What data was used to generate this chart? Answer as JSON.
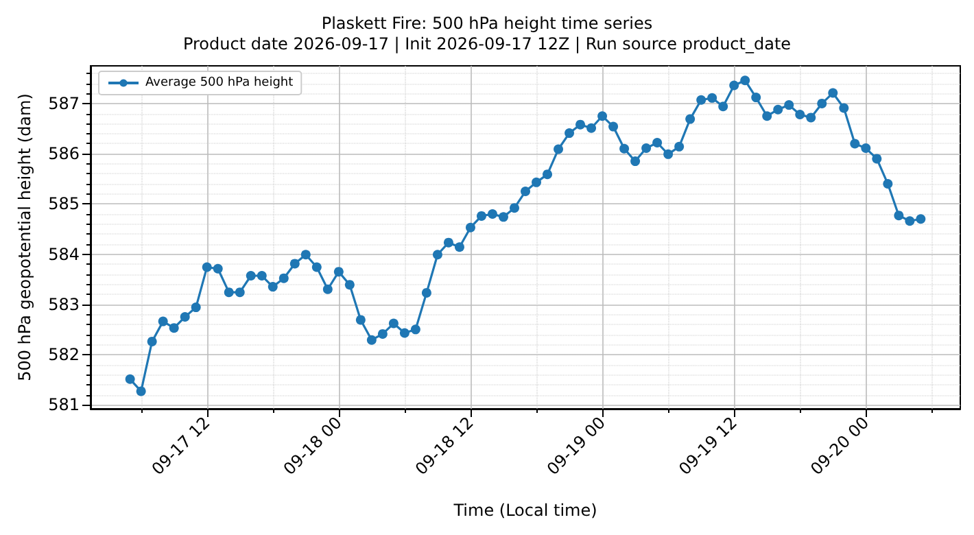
{
  "chart_data": {
    "type": "line",
    "title": "Plaskett Fire: 500 hPa height time series",
    "subtitle": "Product date 2026-09-17 | Init 2026-09-17 12Z | Run source product_date",
    "xlabel": "Time (Local time)",
    "ylabel": "500 hPa geopotential height (dam)",
    "x": [
      "2026-09-17T05:00",
      "2026-09-17T06:00",
      "2026-09-17T07:00",
      "2026-09-17T08:00",
      "2026-09-17T09:00",
      "2026-09-17T10:00",
      "2026-09-17T11:00",
      "2026-09-17T12:00",
      "2026-09-17T13:00",
      "2026-09-17T14:00",
      "2026-09-17T15:00",
      "2026-09-17T16:00",
      "2026-09-17T17:00",
      "2026-09-17T18:00",
      "2026-09-17T19:00",
      "2026-09-17T20:00",
      "2026-09-17T21:00",
      "2026-09-17T22:00",
      "2026-09-17T23:00",
      "2026-09-18T00:00",
      "2026-09-18T01:00",
      "2026-09-18T02:00",
      "2026-09-18T03:00",
      "2026-09-18T04:00",
      "2026-09-18T05:00",
      "2026-09-18T06:00",
      "2026-09-18T07:00",
      "2026-09-18T08:00",
      "2026-09-18T09:00",
      "2026-09-18T10:00",
      "2026-09-18T11:00",
      "2026-09-18T12:00",
      "2026-09-18T13:00",
      "2026-09-18T14:00",
      "2026-09-18T15:00",
      "2026-09-18T16:00",
      "2026-09-18T17:00",
      "2026-09-18T18:00",
      "2026-09-18T19:00",
      "2026-09-18T20:00",
      "2026-09-18T21:00",
      "2026-09-18T22:00",
      "2026-09-18T23:00",
      "2026-09-19T00:00",
      "2026-09-19T01:00",
      "2026-09-19T02:00",
      "2026-09-19T03:00",
      "2026-09-19T04:00",
      "2026-09-19T05:00",
      "2026-09-19T06:00",
      "2026-09-19T07:00",
      "2026-09-19T08:00",
      "2026-09-19T09:00",
      "2026-09-19T10:00",
      "2026-09-19T11:00",
      "2026-09-19T12:00",
      "2026-09-19T13:00",
      "2026-09-19T14:00",
      "2026-09-19T15:00",
      "2026-09-19T16:00",
      "2026-09-19T17:00",
      "2026-09-19T18:00",
      "2026-09-19T19:00",
      "2026-09-19T20:00",
      "2026-09-19T21:00",
      "2026-09-19T22:00",
      "2026-09-19T23:00",
      "2026-09-20T00:00",
      "2026-09-20T01:00",
      "2026-09-20T02:00",
      "2026-09-20T03:00",
      "2026-09-20T04:00",
      "2026-09-20T05:00"
    ],
    "series": [
      {
        "name": "Average 500 hPa height",
        "color": "#1f77b4",
        "values": [
          581.51,
          581.27,
          582.26,
          582.66,
          582.53,
          582.75,
          582.94,
          583.74,
          583.71,
          583.24,
          583.24,
          583.57,
          583.57,
          583.35,
          583.52,
          583.81,
          583.99,
          583.74,
          583.3,
          583.65,
          583.39,
          582.69,
          582.29,
          582.41,
          582.62,
          582.43,
          582.5,
          583.23,
          583.99,
          584.23,
          584.14,
          584.53,
          584.76,
          584.8,
          584.74,
          584.92,
          585.25,
          585.43,
          585.59,
          586.09,
          586.41,
          586.58,
          586.51,
          586.75,
          586.54,
          586.1,
          585.85,
          586.11,
          586.22,
          585.99,
          586.14,
          586.69,
          587.07,
          587.11,
          586.94,
          587.36,
          587.46,
          587.12,
          586.75,
          586.88,
          586.97,
          586.78,
          586.72,
          587.0,
          587.21,
          586.91,
          586.2,
          586.11,
          585.9,
          585.4,
          584.77,
          584.66,
          584.7
        ]
      }
    ],
    "xlim": [
      "2026-09-17T01:24",
      "2026-09-20T08:36"
    ],
    "xticks": [
      {
        "value": "2026-09-17T06:00",
        "label": null
      },
      {
        "value": "2026-09-17T12:00",
        "label": "09-17 12"
      },
      {
        "value": "2026-09-17T18:00",
        "label": null
      },
      {
        "value": "2026-09-18T00:00",
        "label": "09-18 00"
      },
      {
        "value": "2026-09-18T06:00",
        "label": null
      },
      {
        "value": "2026-09-18T12:00",
        "label": "09-18 12"
      },
      {
        "value": "2026-09-18T18:00",
        "label": null
      },
      {
        "value": "2026-09-19T00:00",
        "label": "09-19 00"
      },
      {
        "value": "2026-09-19T06:00",
        "label": null
      },
      {
        "value": "2026-09-19T12:00",
        "label": "09-19 12"
      },
      {
        "value": "2026-09-19T18:00",
        "label": null
      },
      {
        "value": "2026-09-20T00:00",
        "label": "09-20 00"
      },
      {
        "value": "2026-09-20T06:00",
        "label": null
      }
    ],
    "ylim": [
      580.92,
      587.75
    ],
    "yticks": [
      581,
      {
        "value": 581.2,
        "label": null
      },
      {
        "value": 581.4,
        "label": null
      },
      {
        "value": 581.6,
        "label": null
      },
      {
        "value": 581.8,
        "label": null
      },
      582,
      {
        "value": 582.2,
        "label": null
      },
      {
        "value": 582.4,
        "label": null
      },
      {
        "value": 582.6,
        "label": null
      },
      {
        "value": 582.8,
        "label": null
      },
      583,
      {
        "value": 583.2,
        "label": null
      },
      {
        "value": 583.4,
        "label": null
      },
      {
        "value": 583.6,
        "label": null
      },
      {
        "value": 583.8,
        "label": null
      },
      584,
      {
        "value": 584.2,
        "label": null
      },
      {
        "value": 584.4,
        "label": null
      },
      {
        "value": 584.6,
        "label": null
      },
      {
        "value": 584.8,
        "label": null
      },
      585,
      {
        "value": 585.2,
        "label": null
      },
      {
        "value": 585.4,
        "label": null
      },
      {
        "value": 585.6,
        "label": null
      },
      {
        "value": 585.8,
        "label": null
      },
      586,
      {
        "value": 586.2,
        "label": null
      },
      {
        "value": 586.4,
        "label": null
      },
      {
        "value": 586.6,
        "label": null
      },
      {
        "value": 586.8,
        "label": null
      },
      587,
      {
        "value": 587.2,
        "label": null
      },
      {
        "value": 587.4,
        "label": null
      },
      {
        "value": 587.6,
        "label": null
      }
    ],
    "grid": true,
    "legend": "top left",
    "marker": "circle",
    "line_style": "solid"
  }
}
